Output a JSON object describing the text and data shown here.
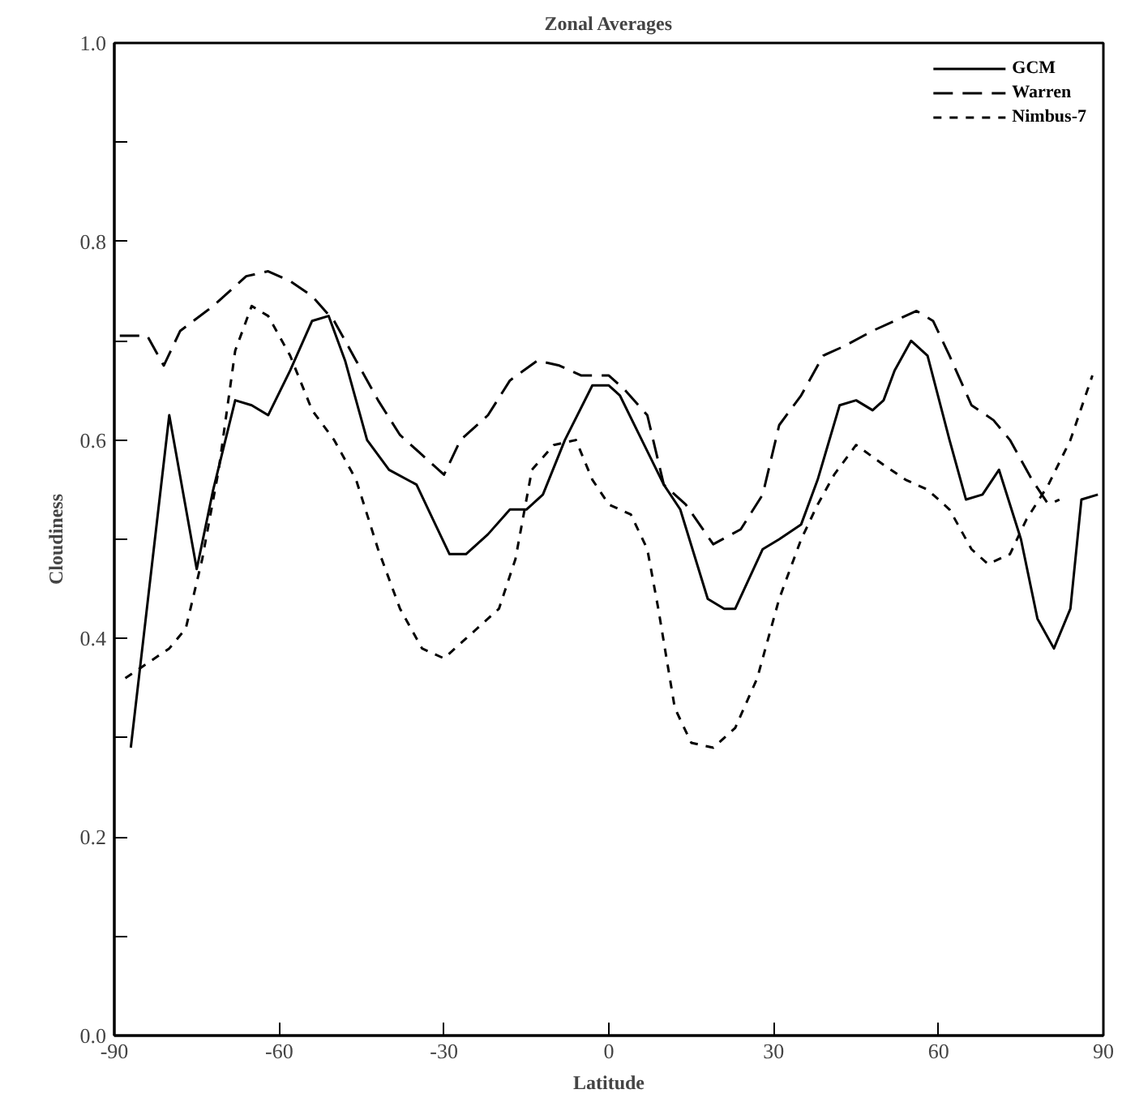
{
  "chart_data": {
    "type": "line",
    "title": "Zonal Averages",
    "xlabel": "Latitude",
    "ylabel": "Cloudiness",
    "xlim": [
      -90,
      90
    ],
    "xticks": [
      -90,
      -60,
      -30,
      0,
      30,
      60,
      90
    ],
    "ylim": [
      0,
      1
    ],
    "yticks": [
      "0.0",
      {
        "value": 0.1,
        "label": null
      },
      0.2,
      {
        "value": 0.3,
        "label": null
      },
      0.4,
      {
        "value": 0.5,
        "label": null
      },
      0.6,
      {
        "value": 0.7,
        "label": null
      },
      0.8,
      {
        "value": 0.9,
        "label": null
      },
      "1.0"
    ],
    "grid": false,
    "legend": "top right",
    "series": [
      {
        "name": "GCM",
        "color": "#000000",
        "line_style": "solid",
        "x": [
          -87,
          -80,
          -75,
          -72,
          -68,
          -65,
          -62,
          -58,
          -54,
          -51,
          -48,
          -44,
          -40,
          -35,
          -32,
          -29,
          -26,
          -22,
          -18,
          -15,
          -12,
          -8,
          -3,
          0,
          2,
          6,
          10,
          13,
          18,
          21,
          23,
          28,
          31,
          35,
          38,
          42,
          45,
          48,
          50,
          52,
          55,
          58,
          62,
          65,
          68,
          71,
          75,
          78,
          81,
          84,
          86,
          89
        ],
        "values": [
          0.29,
          0.625,
          0.47,
          0.55,
          0.64,
          0.635,
          0.625,
          0.67,
          0.72,
          0.725,
          0.68,
          0.6,
          0.57,
          0.555,
          0.52,
          0.485,
          0.485,
          0.505,
          0.53,
          0.53,
          0.545,
          0.6,
          0.655,
          0.655,
          0.645,
          0.6,
          0.555,
          0.53,
          0.44,
          0.43,
          0.43,
          0.49,
          0.5,
          0.515,
          0.56,
          0.635,
          0.64,
          0.63,
          0.64,
          0.67,
          0.7,
          0.685,
          0.6,
          0.54,
          0.545,
          0.57,
          0.5,
          0.42,
          0.39,
          0.43,
          0.54,
          0.545
        ]
      },
      {
        "name": "Warren",
        "color": "#000000",
        "line_style": "dashed",
        "x": [
          -89,
          -84,
          -81,
          -78,
          -72,
          -66,
          -62,
          -58,
          -54,
          -50,
          -46,
          -42,
          -38,
          -34,
          -30,
          -27,
          -22,
          -18,
          -13,
          -9,
          -5,
          0,
          3,
          7,
          10,
          14,
          19,
          24,
          28,
          31,
          35,
          39,
          43,
          48,
          52,
          56,
          59,
          62,
          66,
          70,
          73,
          77,
          80,
          82
        ],
        "values": [
          0.705,
          0.705,
          0.675,
          0.71,
          0.735,
          0.765,
          0.77,
          0.76,
          0.745,
          0.72,
          0.68,
          0.64,
          0.605,
          0.585,
          0.565,
          0.6,
          0.625,
          0.66,
          0.68,
          0.675,
          0.665,
          0.665,
          0.65,
          0.625,
          0.555,
          0.535,
          0.495,
          0.51,
          0.545,
          0.615,
          0.645,
          0.685,
          0.695,
          0.71,
          0.72,
          0.73,
          0.72,
          0.685,
          0.635,
          0.62,
          0.6,
          0.56,
          0.535,
          0.54
        ]
      },
      {
        "name": "Nimbus-7",
        "color": "#000000",
        "line_style": "dotted",
        "x": [
          -88,
          -84,
          -80,
          -77,
          -74,
          -71,
          -68,
          -65,
          -62,
          -58,
          -54,
          -50,
          -46,
          -42,
          -38,
          -34,
          -30,
          -26,
          -20,
          -17,
          -14,
          -10,
          -6,
          -3,
          0,
          4,
          7,
          9,
          12,
          15,
          19,
          23,
          27,
          31,
          35,
          38,
          41,
          45,
          50,
          54,
          58,
          62,
          66,
          69,
          73,
          76,
          80,
          84,
          88
        ],
        "values": [
          0.36,
          0.375,
          0.39,
          0.41,
          0.48,
          0.57,
          0.69,
          0.735,
          0.725,
          0.685,
          0.63,
          0.6,
          0.56,
          0.49,
          0.43,
          0.39,
          0.38,
          0.4,
          0.43,
          0.48,
          0.57,
          0.595,
          0.6,
          0.56,
          0.535,
          0.525,
          0.49,
          0.43,
          0.33,
          0.295,
          0.29,
          0.31,
          0.36,
          0.44,
          0.5,
          0.535,
          0.565,
          0.595,
          0.575,
          0.56,
          0.55,
          0.53,
          0.49,
          0.475,
          0.485,
          0.52,
          0.555,
          0.6,
          0.665
        ]
      }
    ]
  }
}
